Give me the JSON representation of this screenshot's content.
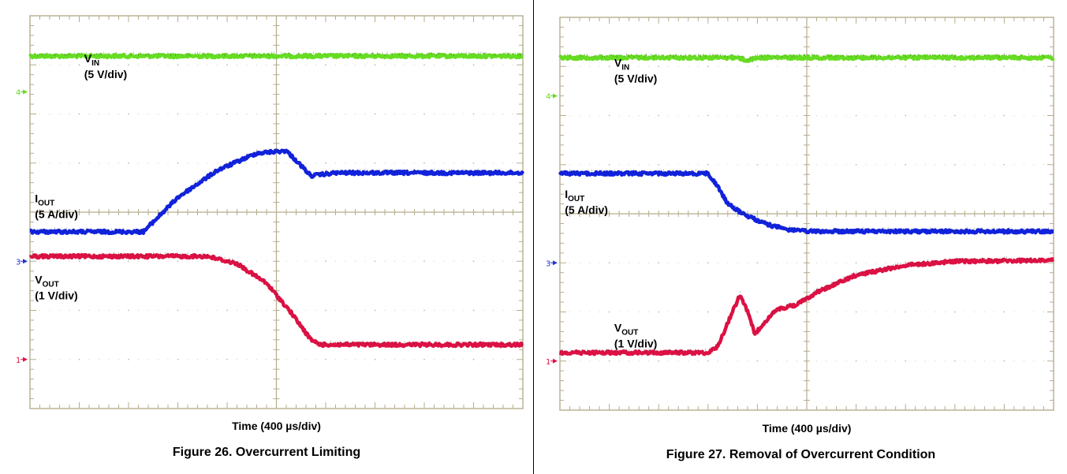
{
  "chart_data": [
    {
      "type": "line",
      "figure": "Figure 26. Overcurrent Limiting",
      "xlabel": "Time (400 µs/div)",
      "divisions": {
        "x": 10,
        "y": 8
      },
      "channel_markers": [
        {
          "label": "4",
          "color": "#66dd22",
          "y_div": 6.45
        },
        {
          "label": "3",
          "color": "#2233cc",
          "y_div": 3.0
        },
        {
          "label": "1",
          "color": "#dd1144",
          "y_div": 1.0
        }
      ],
      "series": [
        {
          "name": "V",
          "sub": "IN",
          "scale": "(5 V/div)",
          "color": "#66dd22",
          "label_pos": {
            "x": 1.1,
            "y": 7.05
          },
          "points": [
            [
              0,
              7.18
            ],
            [
              10,
              7.18
            ]
          ]
        },
        {
          "name": "I",
          "sub": "OUT",
          "scale": "(5 A/div)",
          "color": "#1122dd",
          "label_pos": {
            "x": 0.1,
            "y": 4.2
          },
          "points": [
            [
              0,
              3.6
            ],
            [
              2.3,
              3.6
            ],
            [
              3.0,
              4.3
            ],
            [
              3.8,
              4.85
            ],
            [
              4.6,
              5.2
            ],
            [
              5.2,
              5.25
            ],
            [
              5.4,
              5.05
            ],
            [
              5.7,
              4.74
            ],
            [
              6.2,
              4.8
            ],
            [
              10,
              4.8
            ]
          ]
        },
        {
          "name": "V",
          "sub": "OUT",
          "scale": "(1 V/div)",
          "color": "#dd1144",
          "label_pos": {
            "x": 0.1,
            "y": 2.55
          },
          "points": [
            [
              0,
              3.1
            ],
            [
              3.6,
              3.1
            ],
            [
              4.2,
              2.95
            ],
            [
              4.8,
              2.55
            ],
            [
              5.3,
              1.95
            ],
            [
              5.7,
              1.4
            ],
            [
              5.9,
              1.3
            ],
            [
              10,
              1.3
            ]
          ]
        }
      ]
    },
    {
      "type": "line",
      "figure": "Figure 27. Removal of Overcurrent Condition",
      "xlabel": "Time (400 µs/div)",
      "divisions": {
        "x": 10,
        "y": 8
      },
      "channel_markers": [
        {
          "label": "4",
          "color": "#66dd22",
          "y_div": 6.4
        },
        {
          "label": "3",
          "color": "#2233cc",
          "y_div": 3.0
        },
        {
          "label": "1",
          "color": "#dd1144",
          "y_div": 1.0
        }
      ],
      "series": [
        {
          "name": "V",
          "sub": "IN",
          "scale": "(5 V/div)",
          "color": "#66dd22",
          "label_pos": {
            "x": 1.1,
            "y": 7.0
          },
          "points": [
            [
              0,
              7.18
            ],
            [
              3.6,
              7.18
            ],
            [
              3.8,
              7.12
            ],
            [
              4.0,
              7.18
            ],
            [
              10,
              7.18
            ]
          ]
        },
        {
          "name": "V",
          "sub": "OUT",
          "scale": "(1 V/div)",
          "color": "#dd1144",
          "label_pos": {
            "x": 1.1,
            "y": 1.6
          },
          "points": [
            [
              0,
              1.17
            ],
            [
              3.0,
              1.17
            ],
            [
              3.2,
              1.3
            ],
            [
              3.45,
              1.9
            ],
            [
              3.65,
              2.35
            ],
            [
              3.8,
              2.0
            ],
            [
              3.95,
              1.55
            ],
            [
              4.15,
              1.8
            ],
            [
              4.4,
              2.05
            ],
            [
              4.8,
              2.15
            ],
            [
              5.2,
              2.4
            ],
            [
              6.0,
              2.75
            ],
            [
              7.0,
              2.95
            ],
            [
              8.0,
              3.03
            ],
            [
              10,
              3.05
            ]
          ]
        },
        {
          "name": "I",
          "sub": "OUT",
          "scale": "(5 A/div)",
          "color": "#1122dd",
          "label_pos": {
            "x": 0.1,
            "y": 4.32
          },
          "points": [
            [
              0,
              4.82
            ],
            [
              3.0,
              4.82
            ],
            [
              3.2,
              4.55
            ],
            [
              3.4,
              4.2
            ],
            [
              3.7,
              4.0
            ],
            [
              4.2,
              3.78
            ],
            [
              4.6,
              3.68
            ],
            [
              5.0,
              3.64
            ],
            [
              10,
              3.64
            ]
          ]
        }
      ]
    }
  ]
}
